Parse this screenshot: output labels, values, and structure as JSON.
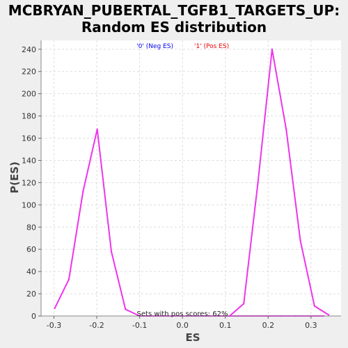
{
  "chart_data": {
    "type": "line",
    "title_line1": "MCBRYAN_PUBERTAL_TGFB1_TARGETS_UP:",
    "title_line2": "Random ES distribution",
    "xlabel": "ES",
    "ylabel": "P(ES)",
    "xlim": [
      -0.33,
      0.37
    ],
    "ylim": [
      0,
      248
    ],
    "x_ticks": [
      -0.3,
      -0.2,
      -0.1,
      0.0,
      0.1,
      0.2,
      0.3
    ],
    "x_tick_labels": [
      "-0.3",
      "-0.2",
      "-0.1",
      "0.0",
      "0.1",
      "0.2",
      "0.3"
    ],
    "y_ticks": [
      0,
      20,
      40,
      60,
      80,
      100,
      120,
      140,
      160,
      180,
      200,
      220,
      240
    ],
    "grid": true,
    "legend_placement": "top-center",
    "legend": [
      {
        "label": "'0' (Neg ES)",
        "color": "#0000ee"
      },
      {
        "label": "'1' (Pos ES)",
        "color": "#ee0000"
      }
    ],
    "annotation": "Sets with pos scores: 62%",
    "line_color": "#ee33ee",
    "series": [
      {
        "values_x": [
          -0.298,
          -0.265,
          -0.232,
          -0.199,
          -0.166,
          -0.133,
          -0.1,
          -0.067,
          -0.034,
          -0.001,
          0.032,
          0.065,
          0.098,
          0.131,
          0.164,
          0.197,
          0.23,
          0.263,
          0.296,
          0.329
        ],
        "values_y": [
          7,
          33,
          112,
          168,
          58,
          6,
          0,
          0,
          0,
          0,
          0,
          0,
          0,
          0,
          0,
          0,
          0,
          0,
          0,
          0
        ]
      },
      {
        "values_x": [
          0.11,
          0.143,
          0.176,
          0.209,
          0.242,
          0.275,
          0.308,
          0.341
        ],
        "values_y": [
          0,
          11,
          120,
          240,
          168,
          68,
          9,
          1
        ]
      }
    ]
  }
}
